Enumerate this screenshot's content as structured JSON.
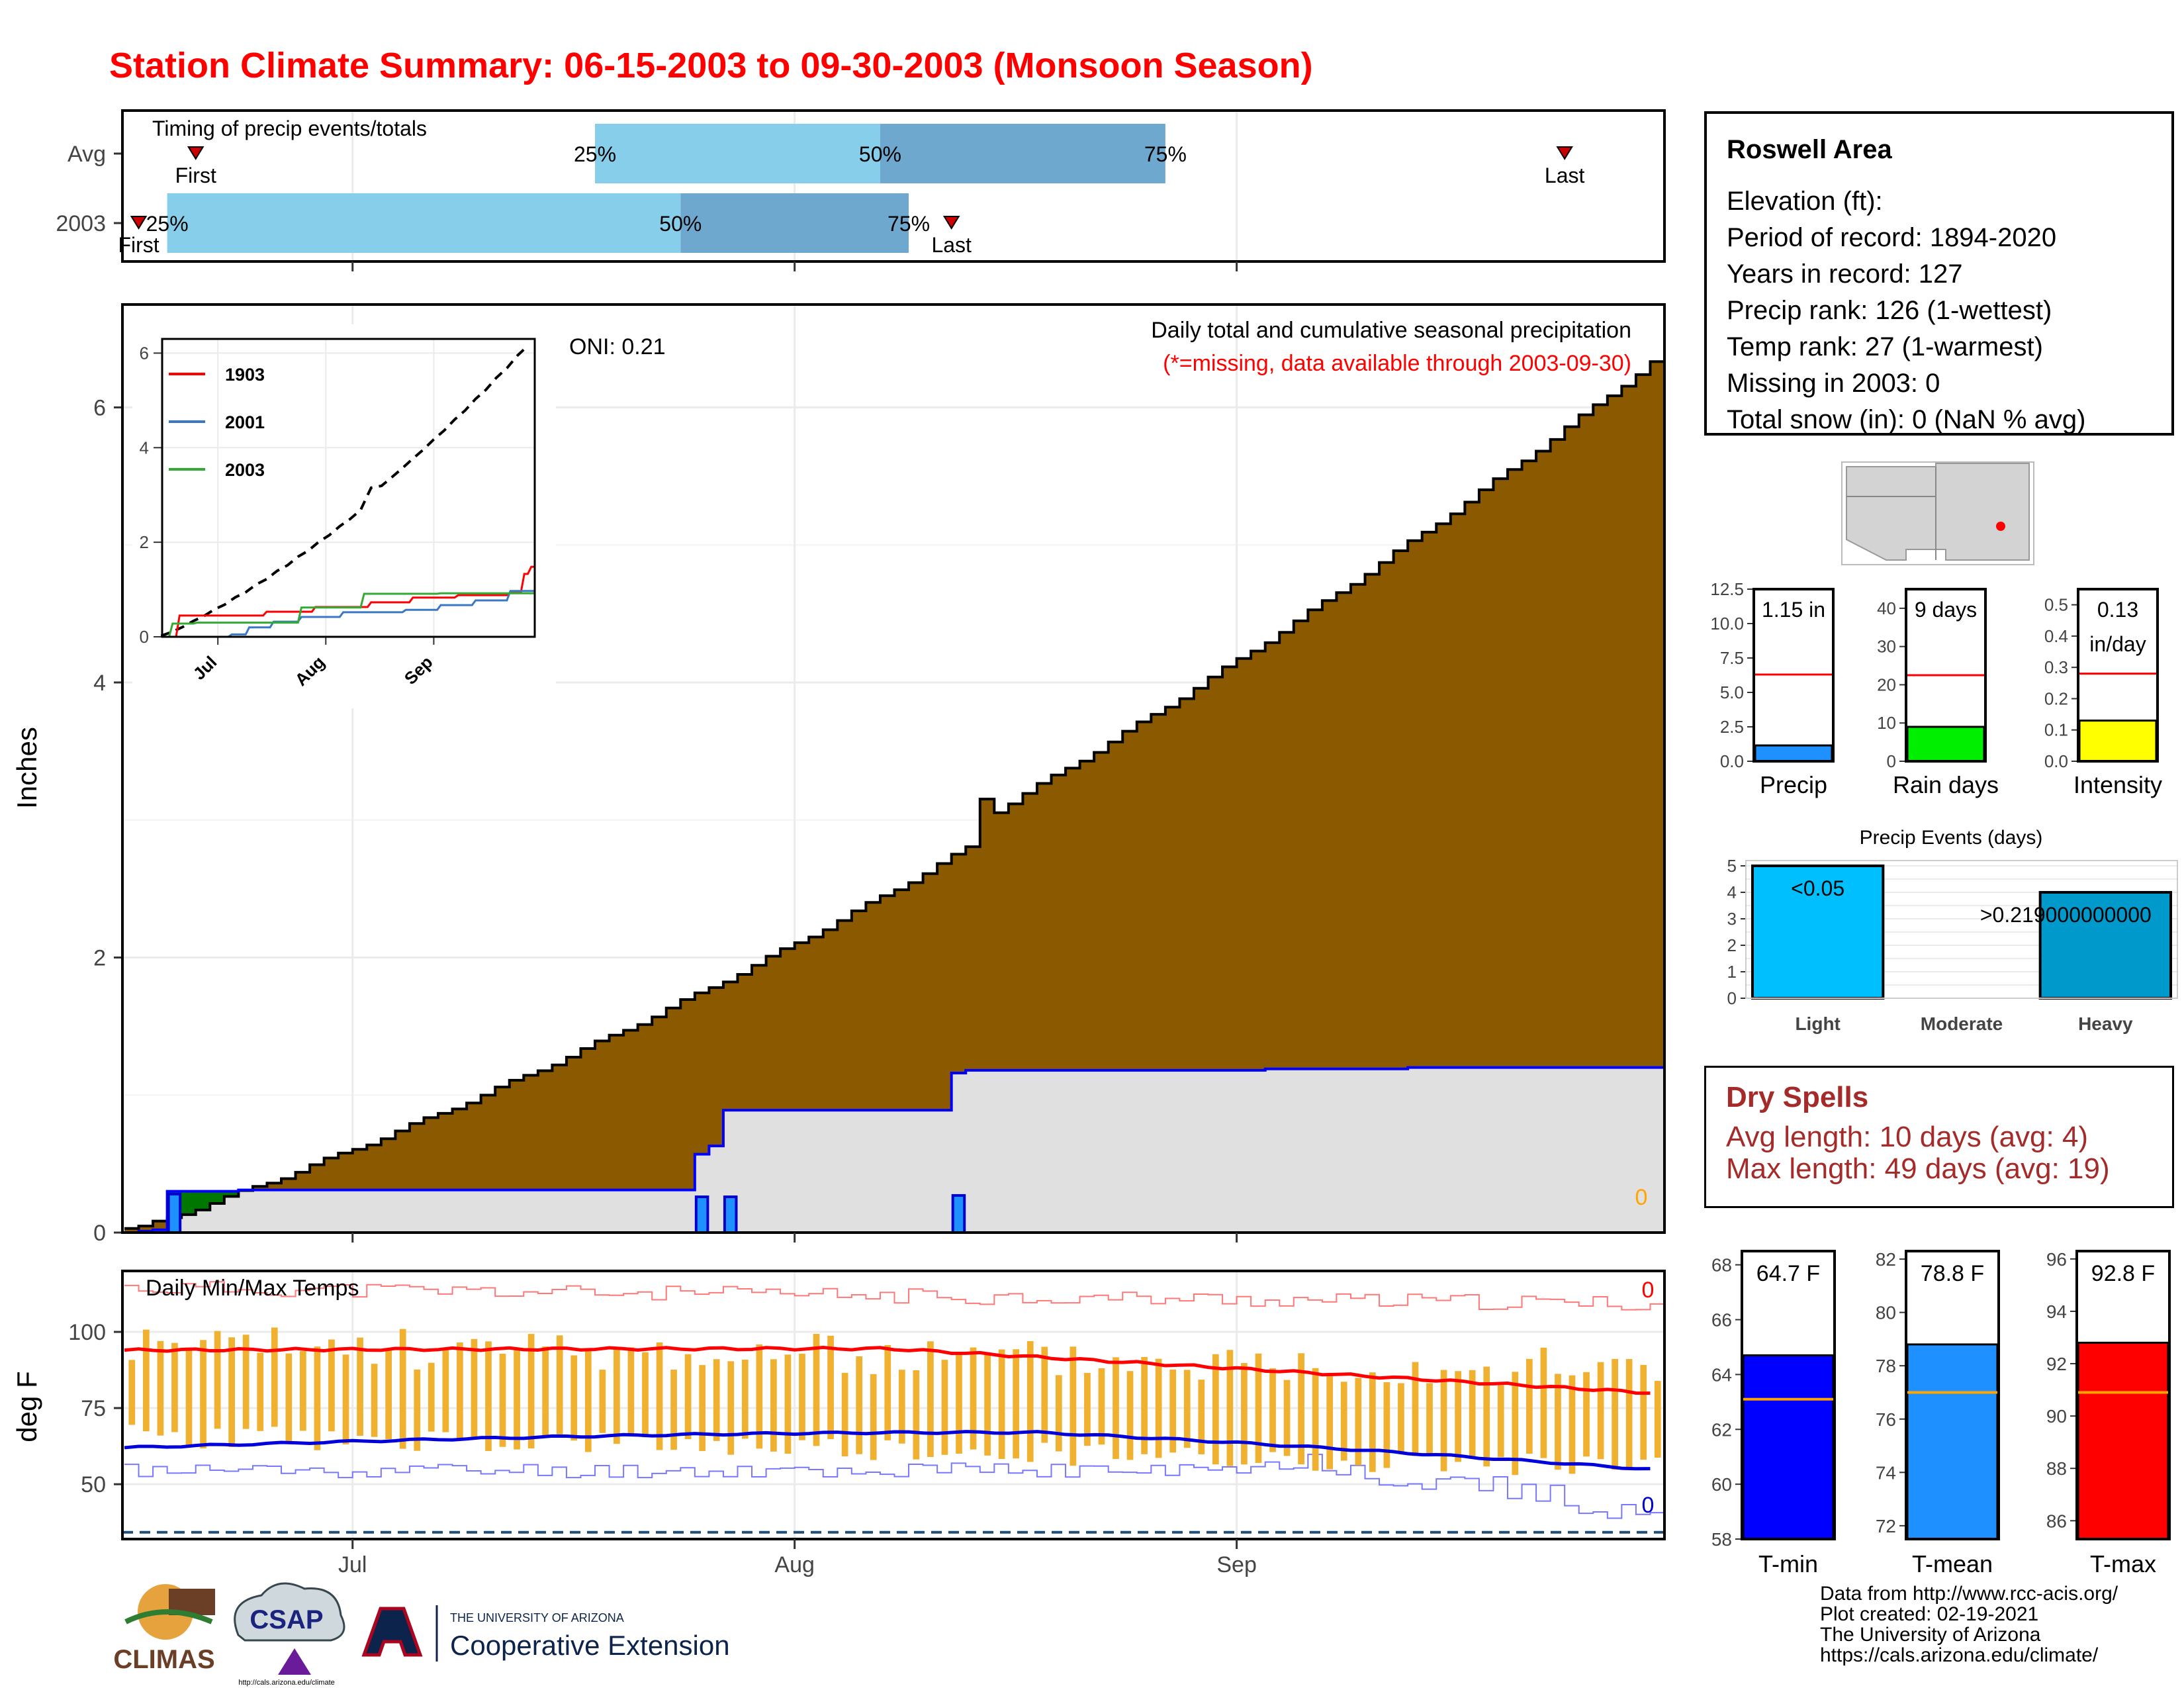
{
  "title": "Station Climate Summary: 06-15-2003 to 09-30-2003 (Monsoon Season)",
  "timing": {
    "label": "Timing of precip events/totals",
    "rows": [
      {
        "name": "Avg",
        "first_day": 5,
        "last_day": 101,
        "p25_day": 33,
        "p50_day": 53,
        "p75_day": 73
      },
      {
        "name": "2003",
        "first_day": 1,
        "last_day": 58,
        "p25_day": 3,
        "p50_day": 39,
        "p75_day": 55
      }
    ],
    "first_label": "First",
    "last_label": "Last",
    "pct_labels": [
      "25%",
      "50%",
      "75%"
    ]
  },
  "main": {
    "ylabel": "Inches",
    "subtitle1": "Daily total and cumulative seasonal precipitation",
    "subtitle2": "(*=missing, data available through 2003-09-30)",
    "oni": "ONI: 0.21",
    "missing_count": "0",
    "yticks": [
      0,
      2,
      4,
      6
    ],
    "ylim": [
      0,
      6.7
    ],
    "xticks": [
      "Jul",
      "Aug",
      "Sep"
    ],
    "colors": {
      "avg_fill": "#8b5a00",
      "obs_fill": "#e0e0e0",
      "obs_line": "#0000ff",
      "bars": "#1e90ff"
    }
  },
  "inset": {
    "yticks": [
      0,
      2,
      4,
      6
    ],
    "xticks": [
      "Jul",
      "Aug",
      "Sep"
    ],
    "series": [
      {
        "name": "1903",
        "color": "#ff0000"
      },
      {
        "name": "2001",
        "color": "#3a78c3"
      },
      {
        "name": "2003",
        "color": "#33aa33"
      }
    ]
  },
  "temps": {
    "label": "Daily Min/Max Temps",
    "ylabel": "deg F",
    "yticks": [
      50,
      75,
      100
    ],
    "ylim": [
      32,
      120
    ],
    "missing_max": "0",
    "missing_min": "0",
    "xticks": [
      "Jul",
      "Aug",
      "Sep"
    ]
  },
  "station": {
    "name": "Roswell Area",
    "elevation": "Elevation (ft):",
    "period": "Period of record: 1894-2020",
    "years": "Years in record: 127",
    "precip_rank": "Precip rank: 126 (1-wettest)",
    "temp_rank": "Temp rank: 27 (1-warmest)",
    "missing": "Missing in 2003: 0",
    "snow": "Total snow (in): 0 (NaN % avg)"
  },
  "mini_bars": [
    {
      "label": "Precip",
      "value_text": "1.15 in",
      "value": 1.15,
      "avg": 6.3,
      "ymax": 12.5,
      "yticks": [
        "0.0",
        "2.5",
        "5.0",
        "7.5",
        "10.0",
        "12.5"
      ],
      "color": "#1e90ff"
    },
    {
      "label": "Rain days",
      "value_text": "9 days",
      "value": 9,
      "avg": 22.5,
      "ymax": 45,
      "yticks": [
        "0",
        "10",
        "20",
        "30",
        "40"
      ],
      "color": "#00ee00"
    },
    {
      "label": "Intensity",
      "value_text": "0.13\nin/day",
      "value": 0.13,
      "avg": 0.28,
      "ymax": 0.55,
      "yticks": [
        "0.0",
        "0.1",
        "0.2",
        "0.3",
        "0.4",
        "0.5"
      ],
      "color": "#ffff00"
    }
  ],
  "events": {
    "title": "Precip Events (days)",
    "categories": [
      "Light",
      "Moderate",
      "Heavy"
    ],
    "values": [
      5,
      0,
      4
    ],
    "labels": [
      "<0.05",
      "",
      ">0.219000000000"
    ],
    "yticks": [
      0,
      1,
      2,
      3,
      4,
      5
    ],
    "colors": [
      "#00bfff",
      "#0099dd",
      "#0099cc"
    ]
  },
  "dry_spells": {
    "title": "Dry Spells",
    "avg": "Avg length: 10 days (avg: 4)",
    "max": "Max length: 49 days (avg: 19)"
  },
  "temp_bars": [
    {
      "label": "T-min",
      "value_text": "64.7 F",
      "value": 64.7,
      "avg": 63.1,
      "ymin": 58,
      "ymax": 68.5,
      "yticks": [
        58,
        60,
        62,
        64,
        66,
        68
      ],
      "color": "#0000ff"
    },
    {
      "label": "T-mean",
      "value_text": "78.8 F",
      "value": 78.8,
      "avg": 77.0,
      "ymin": 71.5,
      "ymax": 82.3,
      "yticks": [
        72,
        74,
        76,
        78,
        80,
        82
      ],
      "color": "#1e90ff"
    },
    {
      "label": "T-max",
      "value_text": "92.8 F",
      "value": 92.8,
      "avg": 90.9,
      "ymin": 85.3,
      "ymax": 96.3,
      "yticks": [
        86,
        88,
        90,
        92,
        94,
        96
      ],
      "color": "#ff0000"
    }
  ],
  "footer": {
    "line1": "Data from http://www.rcc-acis.org/",
    "line2": "Plot created: 02-19-2021",
    "line3": "The University of Arizona",
    "line4": "https://cals.arizona.edu/climate/"
  },
  "logos": {
    "climas": "CLIMAS",
    "csap": "CSAP",
    "csap_url": "http://cals.arizona.edu/climate",
    "ua_small": "THE UNIVERSITY OF ARIZONA",
    "ua_big": "Cooperative Extension"
  }
}
